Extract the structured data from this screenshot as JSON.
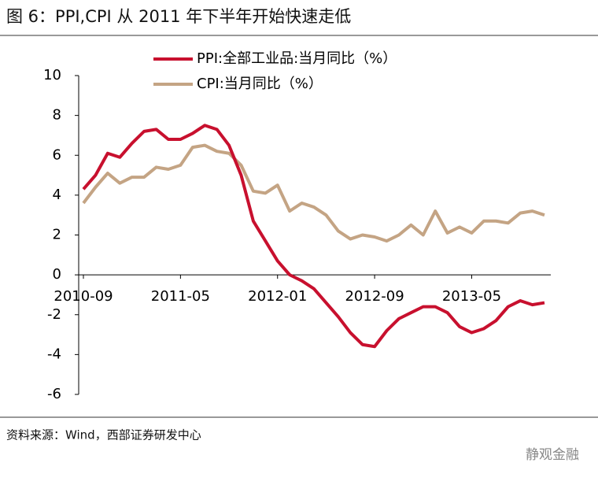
{
  "chart_data": {
    "type": "line",
    "title": "图 6：PPI,CPI 从 2011 年下半年开始快速走低",
    "source": "资料来源：Wind，西部证券研发中心",
    "watermark": "静观金融",
    "categories": [
      "2010-09",
      null,
      null,
      null,
      null,
      null,
      null,
      null,
      "2011-05",
      null,
      null,
      null,
      null,
      null,
      null,
      null,
      "2012-01",
      null,
      null,
      null,
      null,
      null,
      null,
      null,
      "2012-09",
      null,
      null,
      null,
      null,
      null,
      null,
      null,
      "2013-05",
      null,
      null,
      null,
      null,
      null,
      null
    ],
    "series": [
      {
        "name": "PPI:全部工业品:当月同比（%）",
        "color": "#c8102e",
        "values": [
          4.3,
          5.0,
          6.1,
          5.9,
          6.6,
          7.2,
          7.3,
          6.8,
          6.8,
          7.1,
          7.5,
          7.3,
          6.5,
          5.0,
          2.7,
          1.7,
          0.7,
          0.0,
          -0.3,
          -0.7,
          -1.4,
          -2.1,
          -2.9,
          -3.5,
          -3.6,
          -2.8,
          -2.2,
          -1.9,
          -1.6,
          -1.6,
          -1.9,
          -2.6,
          -2.9,
          -2.7,
          -2.3,
          -1.6,
          -1.3,
          -1.5,
          -1.4
        ]
      },
      {
        "name": "CPI:当月同比（%）",
        "color": "#c4a484",
        "values": [
          3.6,
          4.4,
          5.1,
          4.6,
          4.9,
          4.9,
          5.4,
          5.3,
          5.5,
          6.4,
          6.5,
          6.2,
          6.1,
          5.5,
          4.2,
          4.1,
          4.5,
          3.2,
          3.6,
          3.4,
          3.0,
          2.2,
          1.8,
          2.0,
          1.9,
          1.7,
          2.0,
          2.5,
          2.0,
          3.2,
          2.1,
          2.4,
          2.1,
          2.7,
          2.7,
          2.6,
          3.1,
          3.2,
          3.0
        ]
      }
    ],
    "ylim": [
      -6,
      10
    ],
    "yticks": [
      -6,
      -4,
      -2,
      0,
      2,
      4,
      6,
      8,
      10
    ],
    "legend": "top"
  }
}
